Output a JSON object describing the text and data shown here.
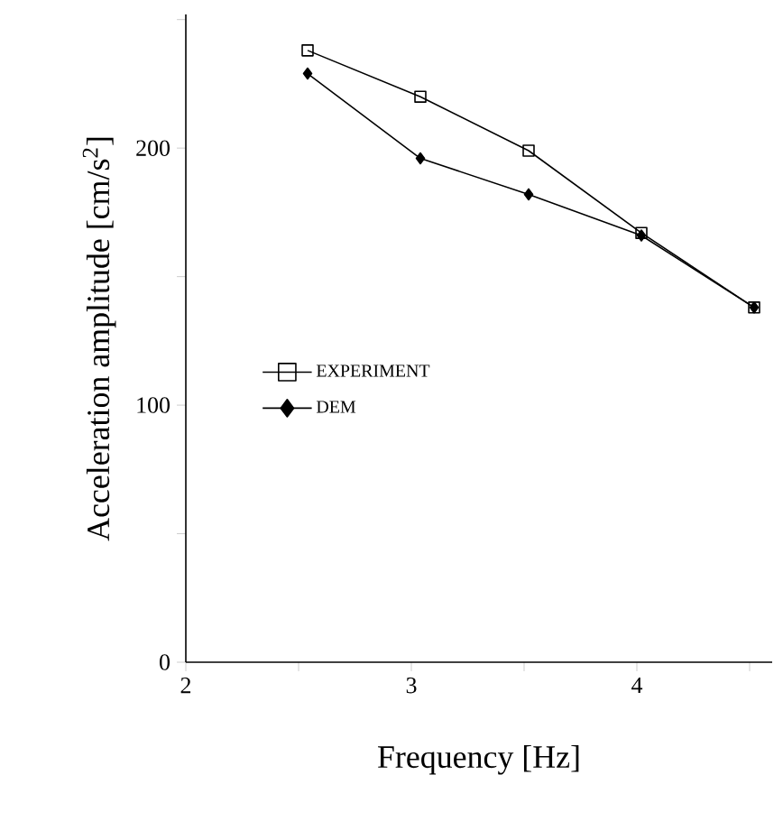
{
  "chart_data": {
    "type": "line",
    "xlabel": "Frequency [Hz]",
    "ylabel": "Acceleration amplitude [cm/s$^{2}$]",
    "x": [
      2.54,
      3.04,
      3.52,
      4.02,
      4.52
    ],
    "series": [
      {
        "name": "EXPERIMENT",
        "color": "#000000",
        "marker": "square",
        "values": [
          238,
          220,
          199,
          167,
          138
        ]
      },
      {
        "name": "DEM",
        "color": "#000000",
        "marker": "diamond",
        "values": [
          229,
          196,
          182,
          166,
          138
        ]
      }
    ],
    "xlim": [
      2,
      4.6
    ],
    "ylim": [
      0,
      252
    ],
    "xticks": [
      2,
      {
        "value": 2.5,
        "label": null
      },
      3,
      {
        "value": 3.5,
        "label": null
      },
      4,
      {
        "value": 4.5,
        "label": null
      }
    ],
    "yticks": [
      0,
      {
        "value": 50,
        "label": null
      },
      100,
      {
        "value": 150,
        "label": null
      },
      200,
      {
        "value": 250,
        "label": null
      }
    ],
    "grid": false,
    "legend": "center left",
    "line_style": "solid"
  }
}
